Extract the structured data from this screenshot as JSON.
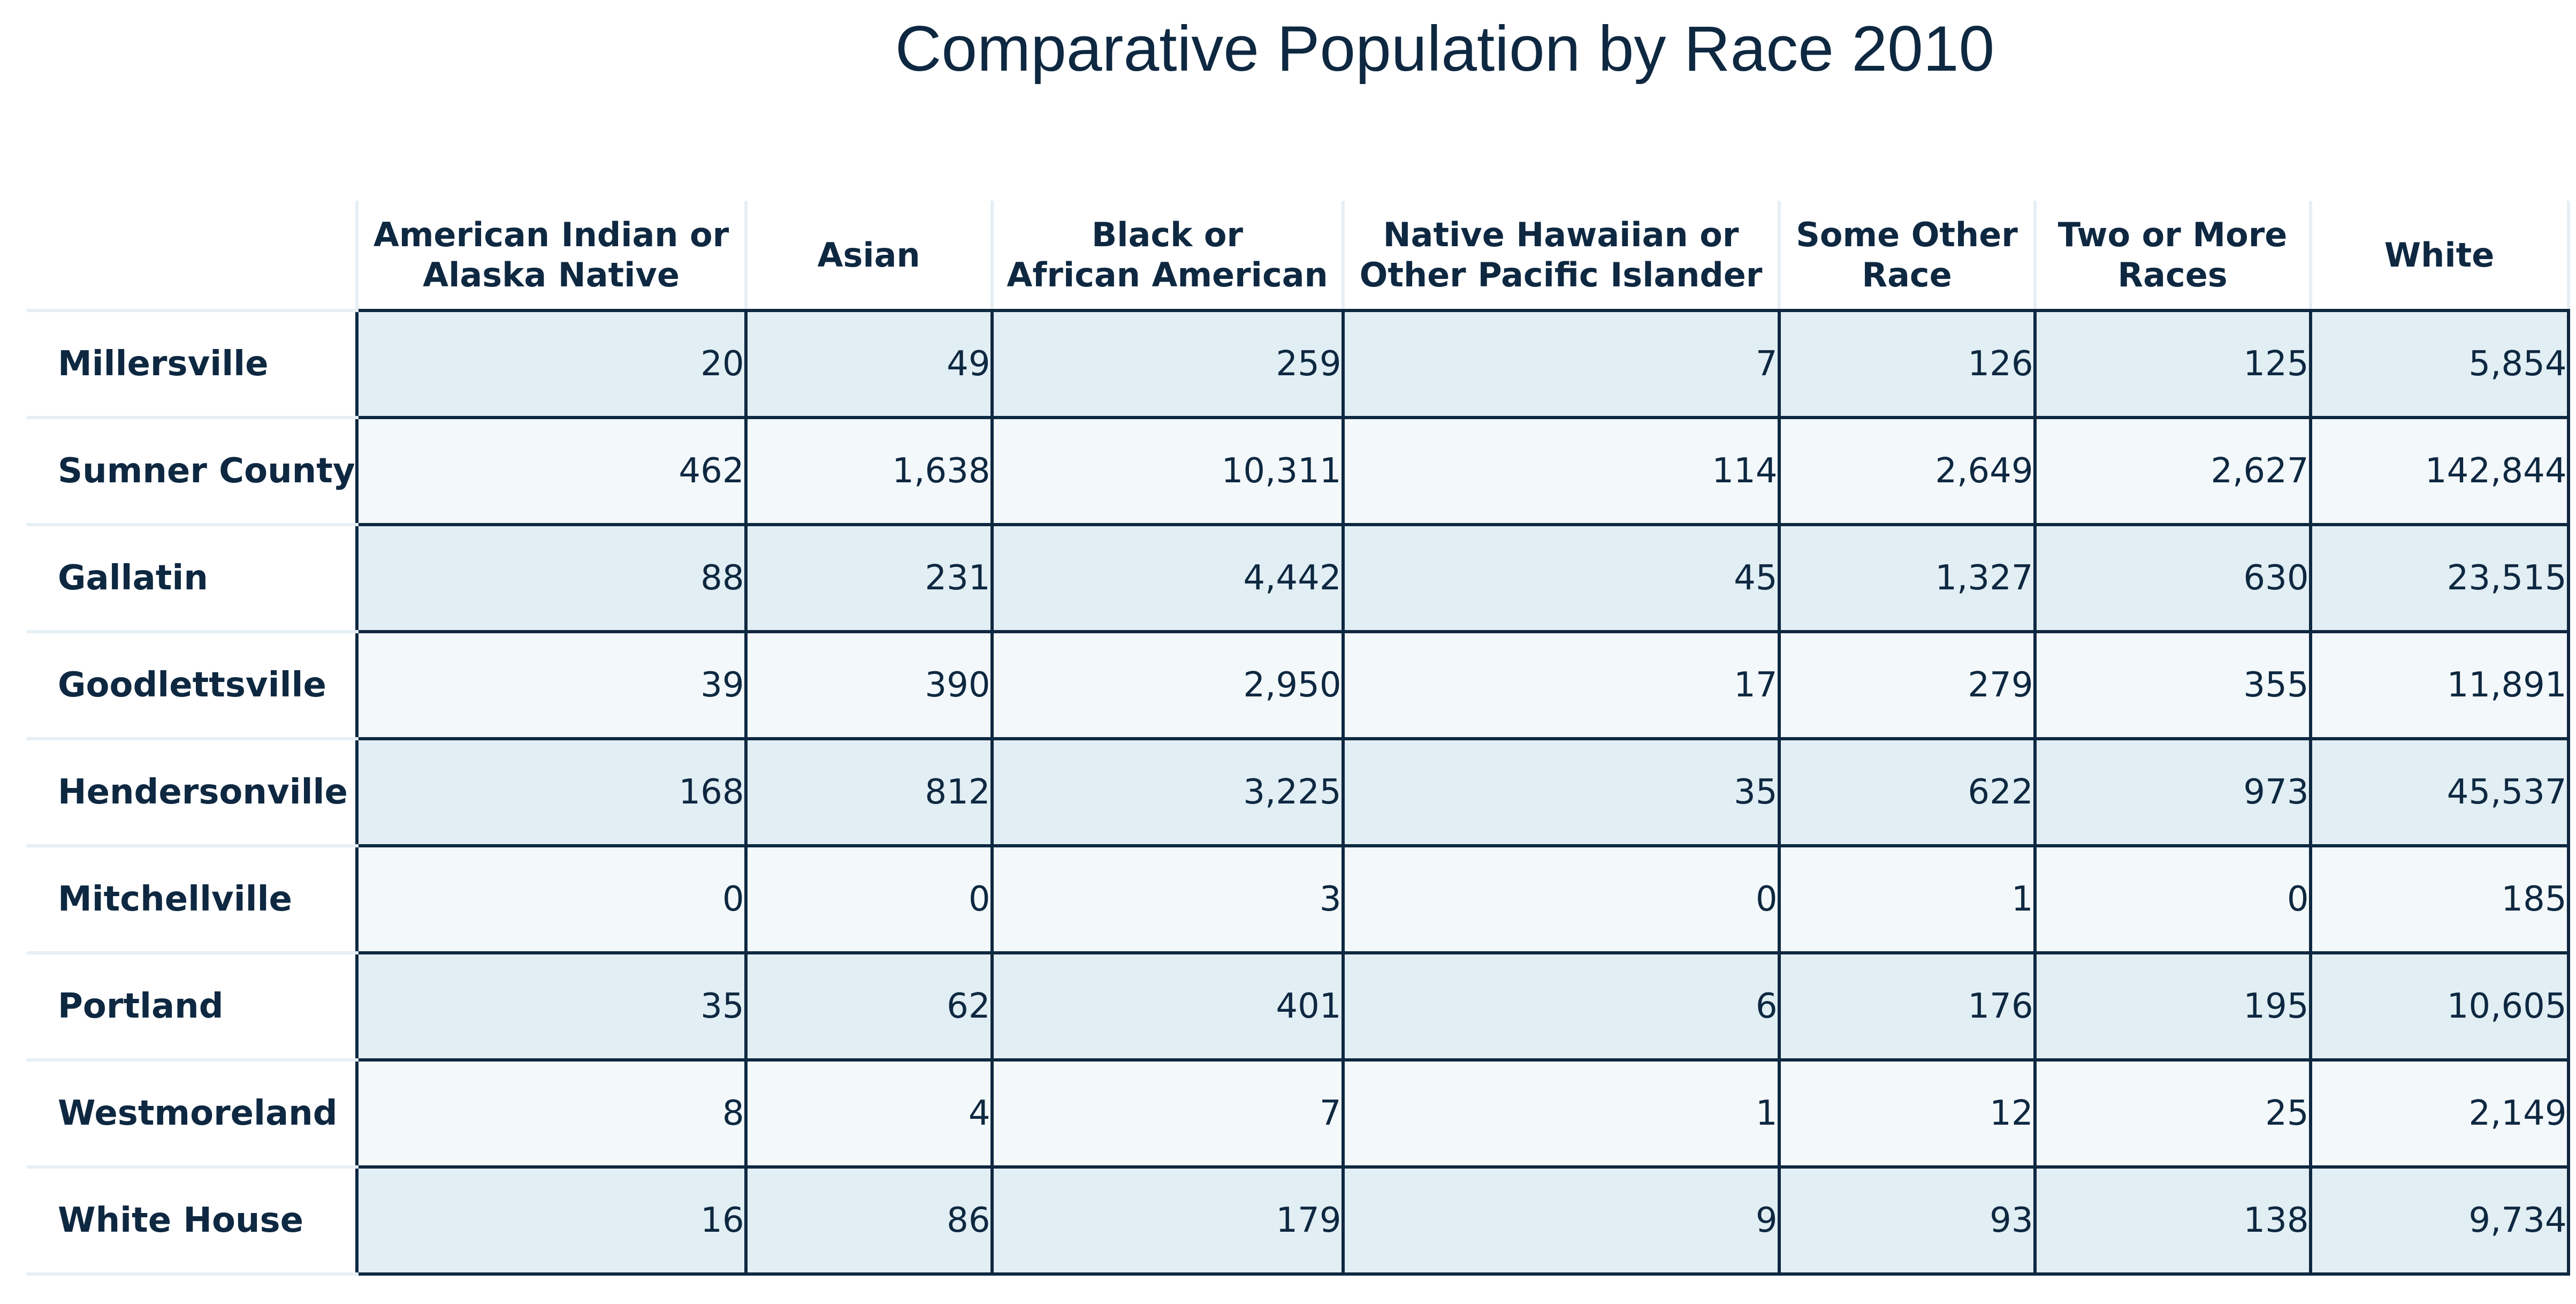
{
  "chart_data": {
    "type": "table",
    "title": "Comparative Population by Race 2010",
    "columns": [
      [
        "American Indian or",
        "Alaska Native"
      ],
      [
        "Asian"
      ],
      [
        "Black or",
        "African American"
      ],
      [
        "Native Hawaiian or",
        "Other Pacific Islander"
      ],
      [
        "Some Other",
        "Race"
      ],
      [
        "Two or More",
        "Races"
      ],
      [
        "White"
      ]
    ],
    "rows": [
      {
        "label": "Millersville",
        "values": [
          "20",
          "49",
          "259",
          "7",
          "126",
          "125",
          "5,854"
        ]
      },
      {
        "label": "Sumner County",
        "values": [
          "462",
          "1,638",
          "10,311",
          "114",
          "2,649",
          "2,627",
          "142,844"
        ]
      },
      {
        "label": "Gallatin",
        "values": [
          "88",
          "231",
          "4,442",
          "45",
          "1,327",
          "630",
          "23,515"
        ]
      },
      {
        "label": "Goodlettsville",
        "values": [
          "39",
          "390",
          "2,950",
          "17",
          "279",
          "355",
          "11,891"
        ]
      },
      {
        "label": "Hendersonville",
        "values": [
          "168",
          "812",
          "3,225",
          "35",
          "622",
          "973",
          "45,537"
        ]
      },
      {
        "label": "Mitchellville",
        "values": [
          "0",
          "0",
          "3",
          "0",
          "1",
          "0",
          "185"
        ]
      },
      {
        "label": "Portland",
        "values": [
          "35",
          "62",
          "401",
          "6",
          "176",
          "195",
          "10,605"
        ]
      },
      {
        "label": "Westmoreland",
        "values": [
          "8",
          "4",
          "7",
          "1",
          "12",
          "25",
          "2,149"
        ]
      },
      {
        "label": "White House",
        "values": [
          "16",
          "86",
          "179",
          "9",
          "93",
          "138",
          "9,734"
        ]
      }
    ],
    "colors": {
      "text": "#0e2841",
      "row_band_dark": "#e1eef3",
      "row_band_light": "#f3f8fa",
      "grid_dark": "#0e2841",
      "grid_light": "#e6eff4"
    }
  }
}
